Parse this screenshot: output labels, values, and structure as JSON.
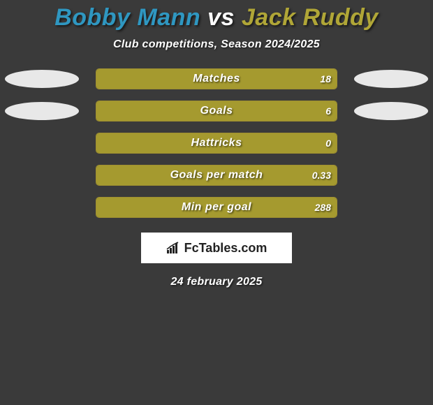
{
  "title": {
    "player1": "Bobby Mann",
    "vs": " vs ",
    "player2": "Jack Ruddy",
    "player1_color": "#2f97c1",
    "vs_color": "#ffffff",
    "player2_color": "#b0a637",
    "fontsize": 34
  },
  "subtitle": {
    "text": "Club competitions, Season 2024/2025",
    "color": "#ffffff",
    "fontsize": 16
  },
  "background_color": "#3a3a3a",
  "bar_fill_color": "#a59a2f",
  "bar_border_color": "#a09030",
  "side_oval_color": "#e8e8e8",
  "text_color": "#ffffff",
  "track_width": 344,
  "show_left_ovals": [
    true,
    true,
    false,
    false,
    false
  ],
  "show_right_ovals": [
    true,
    true,
    false,
    false,
    false
  ],
  "stats": [
    {
      "label": "Matches",
      "value": "18",
      "fill_pct": 100
    },
    {
      "label": "Goals",
      "value": "6",
      "fill_pct": 100
    },
    {
      "label": "Hattricks",
      "value": "0",
      "fill_pct": 100
    },
    {
      "label": "Goals per match",
      "value": "0.33",
      "fill_pct": 100
    },
    {
      "label": "Min per goal",
      "value": "288",
      "fill_pct": 100
    }
  ],
  "brand": {
    "text": "FcTables.com",
    "fontsize": 18,
    "bg": "#ffffff",
    "fg": "#222222"
  },
  "date": {
    "text": "24 february 2025",
    "fontsize": 16,
    "color": "#ffffff"
  }
}
